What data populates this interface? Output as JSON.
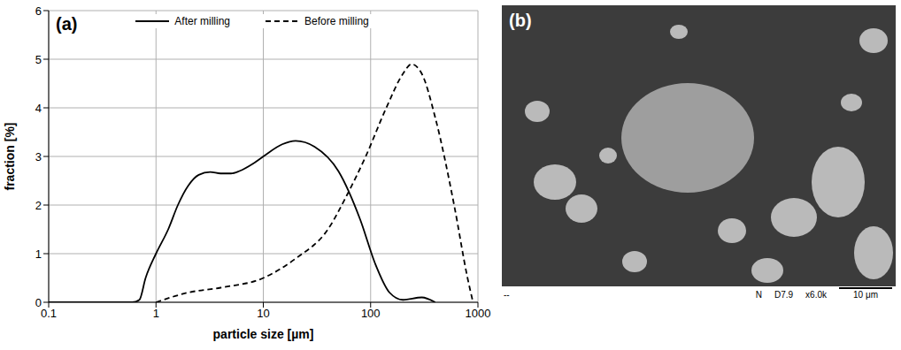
{
  "chart_data": {
    "type": "line",
    "panel_label": "(a)",
    "x_label": "particle size [µm]",
    "y_label": "fraction [%]",
    "log": "x",
    "xlim": [
      0.1,
      1000
    ],
    "xticks": [
      0.1,
      1,
      10,
      100,
      1000
    ],
    "ylim": [
      0,
      6
    ],
    "yticks": [
      0,
      1,
      2,
      3,
      4,
      5,
      6
    ],
    "grid": true,
    "legend": "top",
    "series": [
      {
        "name": "After milling",
        "color": "#000000",
        "line_style": "solid",
        "x": [
          0.1,
          0.3,
          0.6,
          0.7,
          0.8,
          1,
          1.3,
          1.6,
          2,
          2.5,
          3.2,
          4,
          5,
          6,
          8,
          10,
          15,
          20,
          30,
          50,
          80,
          110,
          150,
          200,
          300,
          400
        ],
        "values": [
          0,
          0,
          0,
          0.05,
          0.5,
          1.0,
          1.5,
          2.0,
          2.4,
          2.62,
          2.68,
          2.65,
          2.65,
          2.7,
          2.85,
          3.0,
          3.25,
          3.32,
          3.2,
          2.7,
          1.7,
          0.8,
          0.2,
          0.05,
          0.1,
          0
        ]
      },
      {
        "name": "Before milling",
        "color": "#000000",
        "line_style": "dashed",
        "x": [
          1,
          2,
          4,
          10,
          20,
          40,
          60,
          90,
          140,
          200,
          240,
          300,
          400,
          600,
          800,
          900
        ],
        "values": [
          0,
          0.2,
          0.3,
          0.5,
          0.9,
          1.5,
          2.2,
          3.0,
          4.0,
          4.7,
          4.9,
          4.7,
          3.8,
          2.0,
          0.5,
          0
        ]
      }
    ]
  },
  "image_panel": {
    "panel_label": "(b)",
    "info_left": "--",
    "info_right": [
      "N",
      "D7.9",
      "x6.0k",
      "10 μm"
    ]
  }
}
